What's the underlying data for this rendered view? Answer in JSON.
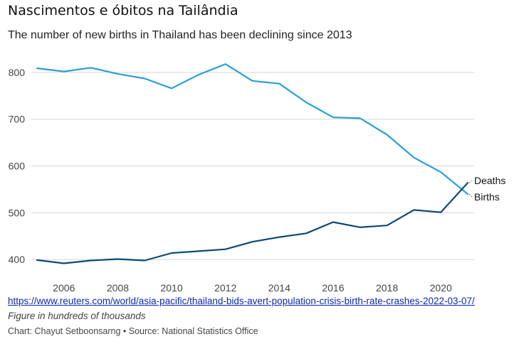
{
  "header": {
    "title": "Nascimentos e óbitos na Tailândia",
    "subtitle": "The number of new births in Thailand has been declining since 2013"
  },
  "footer": {
    "link": "https://www.reuters.com/world/asia-pacific/thailand-bids-avert-population-crisis-birth-rate-crashes-2022-03-07/",
    "note": "Figure in hundreds of thousands",
    "credit": "Chart: Chayut Setboonsarng • Source: National Statistics Office"
  },
  "chart_data": {
    "type": "line",
    "x": [
      2005,
      2006,
      2007,
      2008,
      2009,
      2010,
      2011,
      2012,
      2013,
      2014,
      2015,
      2016,
      2017,
      2018,
      2019,
      2020,
      2021
    ],
    "series": [
      {
        "name": "Births",
        "color": "#2a9fd6",
        "values": [
          809,
          802,
          810,
          797,
          787,
          766,
          795,
          818,
          782,
          776,
          736,
          704,
          702,
          667,
          618,
          587,
          540
        ]
      },
      {
        "name": "Deaths",
        "color": "#0d4a73",
        "values": [
          399,
          392,
          398,
          401,
          398,
          414,
          418,
          422,
          438,
          448,
          456,
          480,
          469,
          473,
          506,
          501,
          564
        ]
      }
    ],
    "xticks": [
      2006,
      2008,
      2010,
      2012,
      2014,
      2016,
      2018,
      2020
    ],
    "yticks": [
      400,
      500,
      600,
      700,
      800
    ],
    "xlim": [
      2005,
      2021
    ],
    "ylim": [
      376,
      850
    ],
    "grid": true,
    "legend": "inline-right"
  }
}
